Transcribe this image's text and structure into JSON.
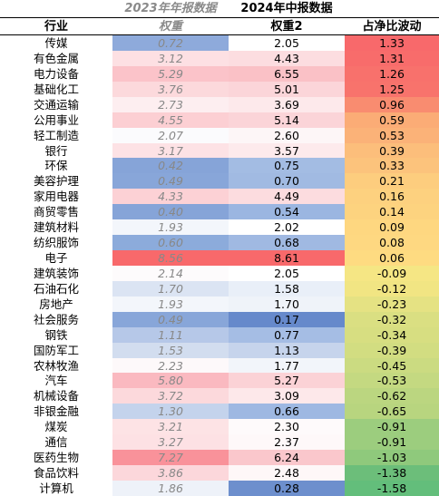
{
  "header": {
    "year2023": "2023年年报数据",
    "year2024": "2024年中报数据",
    "col_industry": "行业",
    "col_weight23": "权重",
    "col_weight24": "权重2",
    "col_delta": "占净比波动"
  },
  "rows": [
    {
      "industry": "传媒",
      "w23": "0.72",
      "w24": "2.05",
      "delta": "1.33",
      "c23": "#8eaadb",
      "c24": "#ffffff",
      "cd": "#f8696b"
    },
    {
      "industry": "有色金属",
      "w23": "3.12",
      "w24": "4.43",
      "delta": "1.31",
      "c23": "#fde0e3",
      "c24": "#fcdde0",
      "cd": "#f86c6b"
    },
    {
      "industry": "电力设备",
      "w23": "5.29",
      "w24": "6.55",
      "delta": "1.26",
      "c23": "#fbc3c9",
      "c24": "#fac1c6",
      "cd": "#f8716c"
    },
    {
      "industry": "基础化工",
      "w23": "3.76",
      "w24": "5.01",
      "delta": "1.25",
      "c23": "#fcd9dc",
      "c24": "#fbd5d9",
      "cd": "#f8736c"
    },
    {
      "industry": "交通运输",
      "w23": "2.73",
      "w24": "3.69",
      "delta": "0.96",
      "c23": "#fdeef0",
      "c24": "#fde9eb",
      "cd": "#f98c70"
    },
    {
      "industry": "公用事业",
      "w23": "4.55",
      "w24": "5.14",
      "delta": "0.59",
      "c23": "#fccfd3",
      "c24": "#fbd4d8",
      "cd": "#fbac76"
    },
    {
      "industry": "轻工制造",
      "w23": "2.07",
      "w24": "2.60",
      "delta": "0.53",
      "c23": "#fbfbfd",
      "c24": "#fdf6f7",
      "cd": "#fbb278"
    },
    {
      "industry": "银行",
      "w23": "3.17",
      "w24": "3.57",
      "delta": "0.39",
      "c23": "#fde2e5",
      "c24": "#fdeaec",
      "cd": "#fcbe7b"
    },
    {
      "industry": "环保",
      "w23": "0.42",
      "w24": "0.75",
      "delta": "0.33",
      "c23": "#86a4d8",
      "c24": "#a3bce3",
      "cd": "#fcc37c"
    },
    {
      "industry": "美容护理",
      "w23": "0.49",
      "w24": "0.70",
      "delta": "0.21",
      "c23": "#88a6d9",
      "c24": "#a1bae2",
      "cd": "#fdcd7e"
    },
    {
      "industry": "家用电器",
      "w23": "4.33",
      "w24": "4.49",
      "delta": "0.16",
      "c23": "#fcd1d5",
      "c24": "#fcdcdf",
      "cd": "#fdd17f"
    },
    {
      "industry": "商贸零售",
      "w23": "0.40",
      "w24": "0.54",
      "delta": "0.14",
      "c23": "#86a4d8",
      "c24": "#9bb6e1",
      "cd": "#fdd37f"
    },
    {
      "industry": "建筑材料",
      "w23": "1.93",
      "w24": "2.02",
      "delta": "0.09",
      "c23": "#f3f6fb",
      "c24": "#ffffff",
      "cd": "#fed780"
    },
    {
      "industry": "纺织服饰",
      "w23": "0.60",
      "w24": "0.68",
      "delta": "0.08",
      "c23": "#8cabdb",
      "c24": "#a0b9e2",
      "cd": "#fed881"
    },
    {
      "industry": "电子",
      "w23": "8.56",
      "w24": "8.61",
      "delta": "0.06",
      "c23": "#f8696b",
      "c24": "#f8696b",
      "cd": "#fedb81"
    },
    {
      "industry": "建筑装饰",
      "w23": "2.14",
      "w24": "2.05",
      "delta": "-0.09",
      "c23": "#fdfbfc",
      "c24": "#ffffff",
      "cd": "#f5e684"
    },
    {
      "industry": "石油石化",
      "w23": "1.70",
      "w24": "1.58",
      "delta": "-0.12",
      "c23": "#dbe4f3",
      "c24": "#e9eff8",
      "cd": "#f1e583"
    },
    {
      "industry": "房地产",
      "w23": "1.93",
      "w24": "1.70",
      "delta": "-0.23",
      "c23": "#f3f6fb",
      "c24": "#eff3f9",
      "cd": "#e5e283"
    },
    {
      "industry": "社会服务",
      "w23": "0.49",
      "w24": "0.17",
      "delta": "-0.32",
      "c23": "#88a6d9",
      "c24": "#6689cb",
      "cd": "#dadf82"
    },
    {
      "industry": "钢铁",
      "w23": "1.11",
      "w24": "0.77",
      "delta": "-0.34",
      "c23": "#b6c8e8",
      "c24": "#a5bde4",
      "cd": "#d7de81"
    },
    {
      "industry": "国防军工",
      "w23": "1.53",
      "w24": "1.13",
      "delta": "-0.39",
      "c23": "#d2ddef",
      "c24": "#c6d4ec",
      "cd": "#d2dd81"
    },
    {
      "industry": "农林牧渔",
      "w23": "2.23",
      "w24": "1.77",
      "delta": "-0.45",
      "c23": "#fdf9fa",
      "c24": "#f2f5fa",
      "cd": "#cbdb81"
    },
    {
      "industry": "汽车",
      "w23": "5.80",
      "w24": "5.27",
      "delta": "-0.53",
      "c23": "#fab9c0",
      "c24": "#fbd2d6",
      "cd": "#c4d981"
    },
    {
      "industry": "机械设备",
      "w23": "3.72",
      "w24": "3.09",
      "delta": "-0.62",
      "c23": "#fcd9dc",
      "c24": "#fde8ea",
      "cd": "#bbd680"
    },
    {
      "industry": "非银金融",
      "w23": "1.30",
      "w24": "0.66",
      "delta": "-0.65",
      "c23": "#c4d3ec",
      "c24": "#9eb8e2",
      "cd": "#b8d57f"
    },
    {
      "industry": "煤炭",
      "w23": "3.21",
      "w24": "2.30",
      "delta": "-0.91",
      "c23": "#fde3e5",
      "c24": "#fefafb",
      "cd": "#9ccd7e"
    },
    {
      "industry": "通信",
      "w23": "3.27",
      "w24": "2.37",
      "delta": "-0.91",
      "c23": "#fde1e4",
      "c24": "#fef8f9",
      "cd": "#9ccd7e"
    },
    {
      "industry": "医药生物",
      "w23": "7.27",
      "w24": "6.24",
      "delta": "-1.03",
      "c23": "#f9929a",
      "c24": "#fac7cc",
      "cd": "#8fc97c"
    },
    {
      "industry": "食品饮料",
      "w23": "3.86",
      "w24": "2.48",
      "delta": "-1.38",
      "c23": "#fcd7db",
      "c24": "#fef7f8",
      "cd": "#6cbe7a"
    },
    {
      "industry": "计算机",
      "w23": "1.86",
      "w24": "0.28",
      "delta": "-1.58",
      "c23": "#eef2f9",
      "c24": "#6d8fcd",
      "cd": "#63be7b"
    }
  ]
}
